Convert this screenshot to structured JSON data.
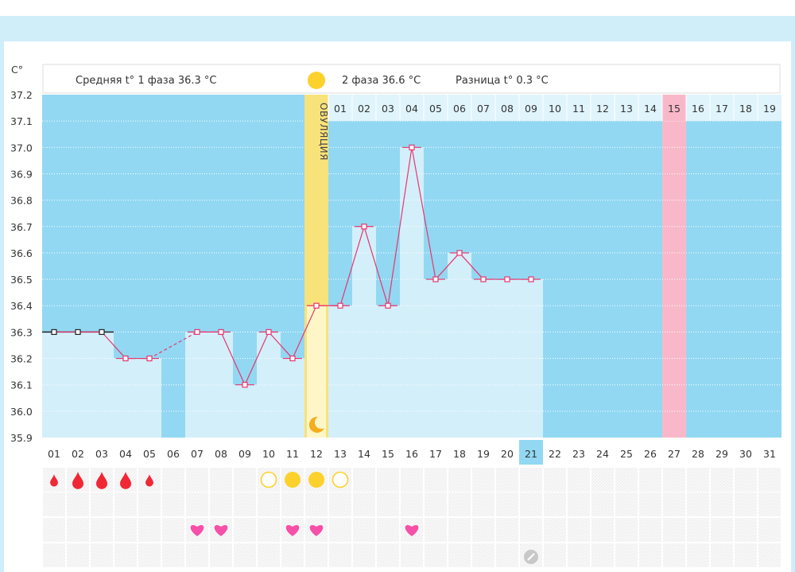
{
  "chart_data": {
    "type": "line",
    "y_unit": "C°",
    "ylim": [
      35.9,
      37.2
    ],
    "y_ticks": [
      "37.2",
      "37.1",
      "37.0",
      "36.9",
      "36.8",
      "36.7",
      "36.6",
      "36.5",
      "36.4",
      "36.3",
      "36.2",
      "36.1",
      "36.0",
      "35.9"
    ],
    "x_days": [
      "01",
      "02",
      "03",
      "04",
      "05",
      "06",
      "07",
      "08",
      "09",
      "10",
      "11",
      "12",
      "13",
      "14",
      "15",
      "16",
      "17",
      "18",
      "19",
      "20",
      "21",
      "22",
      "23",
      "24",
      "25",
      "26",
      "27",
      "28",
      "29",
      "30",
      "31"
    ],
    "today_day": "21",
    "summary": {
      "phase1_label": "Средняя t° 1 фаза",
      "phase1_value": "36.3 °C",
      "phase2_label": "2 фаза",
      "phase2_value": "36.6 °C",
      "diff_label": "Разница t°",
      "diff_value": "0.3 °C"
    },
    "ovulation_label": "ОВУЛЯЦИЯ",
    "ovulation_day": 12,
    "cycle_days": [
      "01",
      "02",
      "03",
      "04",
      "05",
      "06",
      "07",
      "08",
      "09",
      "10",
      "11",
      "12",
      "13",
      "14",
      "15",
      "16",
      "17",
      "18",
      "19"
    ],
    "highlighted_cycle_day": "15",
    "temperatures": [
      36.3,
      36.3,
      36.3,
      36.2,
      36.2,
      null,
      36.3,
      36.3,
      36.1,
      36.3,
      36.2,
      36.4,
      36.4,
      36.7,
      36.4,
      37.0,
      36.5,
      36.6,
      36.5,
      36.5,
      36.5
    ],
    "coverline": 36.3,
    "colors": {
      "phase1_bg": "#92d8f2",
      "bar": "#d3effa",
      "line": "#e8356e",
      "ovulation": "#f8e27a",
      "highlight": "#f9b8c9",
      "today": "#92d8f2",
      "sun": "#fcd12c",
      "blood": "#f02835",
      "heart": "#f750a8"
    },
    "bleeding": {
      "1": 1,
      "2": 2,
      "3": 2,
      "4": 2,
      "5": 1
    },
    "cervical_mucus": {
      "10": "empty",
      "11": "full",
      "12": "full",
      "13": "empty"
    },
    "intercourse_days": [
      7,
      8,
      11,
      12,
      16
    ],
    "note_days": [
      21
    ]
  }
}
